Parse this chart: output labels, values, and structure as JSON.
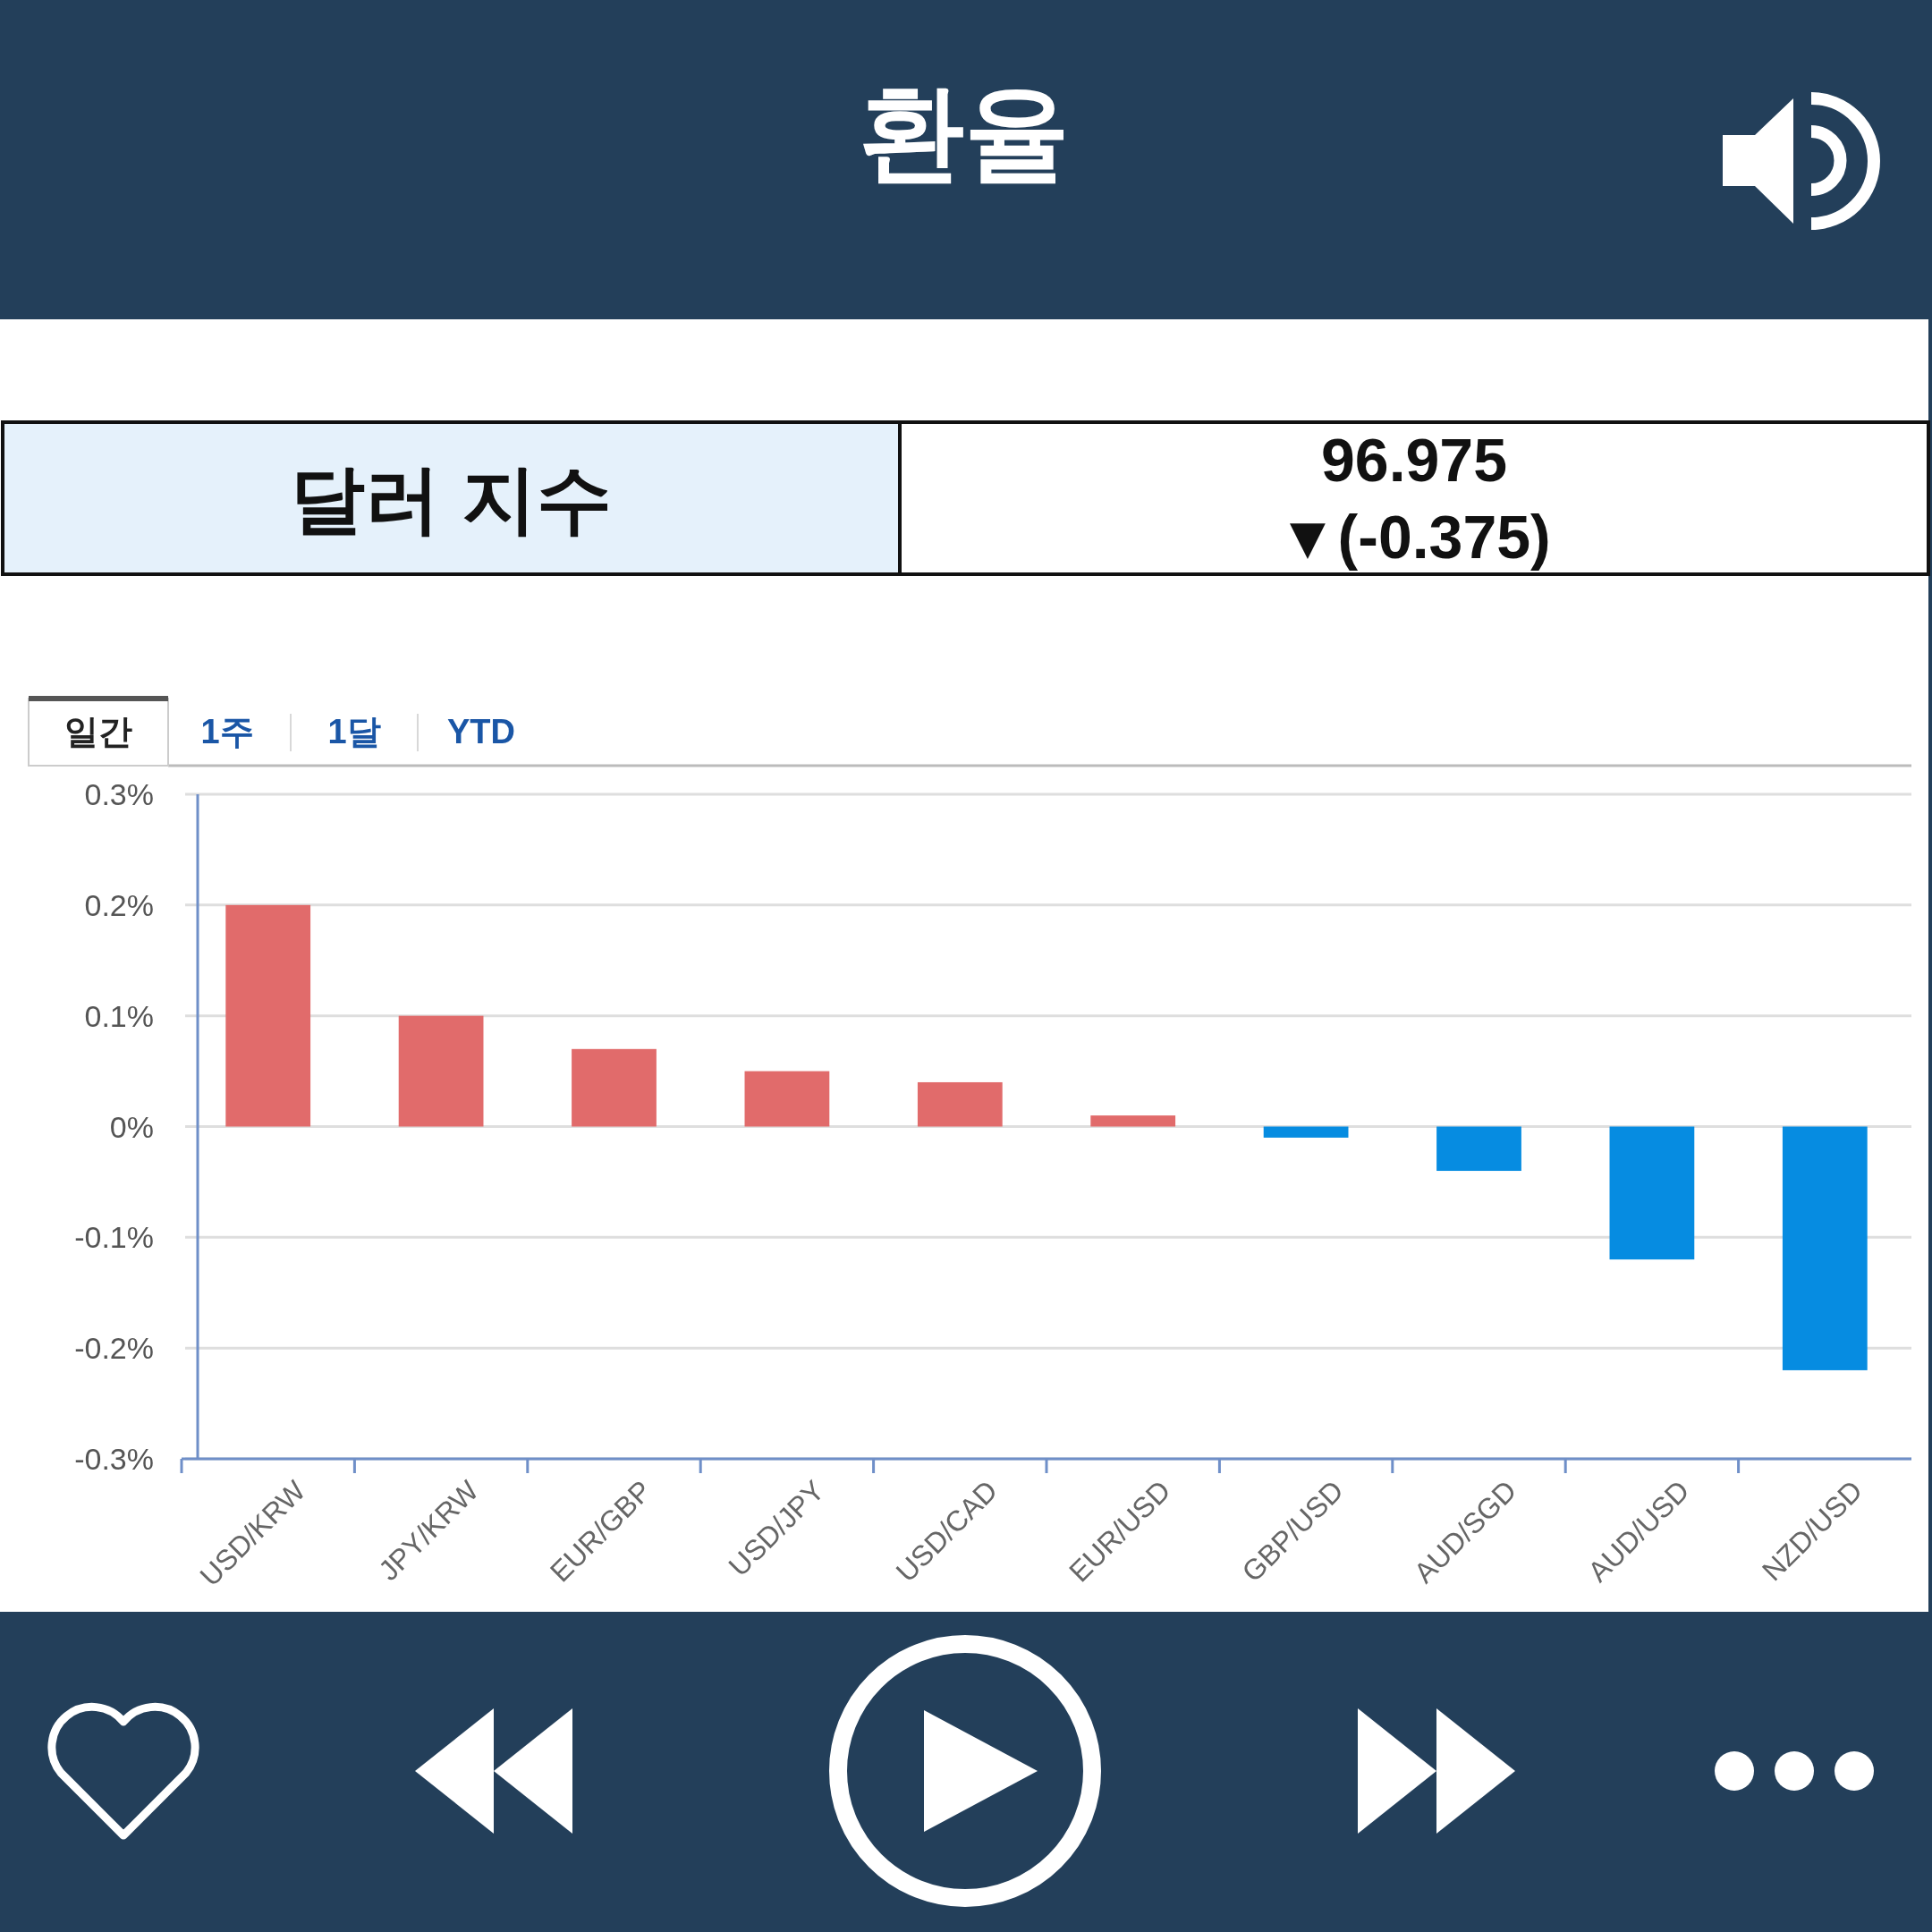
{
  "chart_data": [
    {
      "type": "other",
      "title": "환율",
      "subtitle": "달러 지수",
      "annotations": [
        "96.975",
        "▼(-0.375)"
      ]
    },
    {
      "type": "bar",
      "subtitle": "일간",
      "annotations": [
        "1주",
        "1달",
        "YTD"
      ],
      "categories": [
        "USD/KRW",
        "JPY/KRW",
        "EUR/GBP",
        "USD/JPY",
        "USD/CAD",
        "EUR/USD",
        "GBP/USD",
        "AUD/SGD",
        "AUD/USD",
        "NZD/USD"
      ],
      "values": [
        0.2,
        0.1,
        0.07,
        0.05,
        0.04,
        0.01,
        -0.01,
        -0.04,
        -0.12,
        -0.22
      ],
      "colors": [
        "#e16b6b",
        "#e16b6b",
        "#e16b6b",
        "#e16b6b",
        "#e16b6b",
        "#e16b6b",
        "#068ce1",
        "#068ce1",
        "#068ce1",
        "#068ce1"
      ],
      "ylim": [
        -0.3,
        0.3
      ],
      "yticks": [
        {
          "value": 0.3,
          "label": "0.3%"
        },
        {
          "value": 0.2,
          "label": "0.2%"
        },
        {
          "value": 0.1,
          "label": "0.1%"
        },
        {
          "value": 0,
          "label": "0%"
        },
        {
          "value": -0.1,
          "label": "-0.1%"
        },
        {
          "value": -0.2,
          "label": "-0.2%"
        },
        {
          "value": -0.3,
          "label": "-0.3%"
        }
      ],
      "grid": "y"
    }
  ]
}
